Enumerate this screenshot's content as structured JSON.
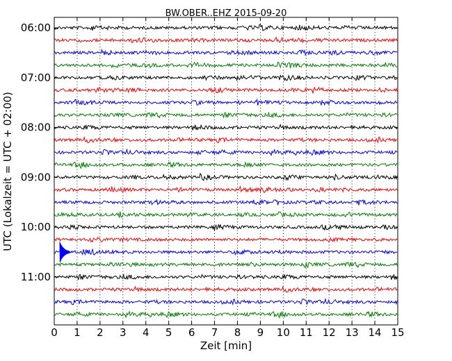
{
  "chart_data": {
    "type": "line",
    "title": "BW.OBER..EHZ 2015-09-20",
    "xlabel": "Zeit  [min]",
    "ylabel": "UTC (Lokalzeit = UTC + 02:00)",
    "xlim": [
      0,
      15
    ],
    "x_ticks": [
      "0",
      "1",
      "2",
      "3",
      "4",
      "5",
      "6",
      "7",
      "8",
      "9",
      "10",
      "11",
      "12",
      "13",
      "14",
      "15"
    ],
    "y_ticks": [
      "06:00",
      "07:00",
      "08:00",
      "09:00",
      "10:00",
      "11:00"
    ],
    "grid": "vertical dotted",
    "colors": [
      "#000000",
      "#ff0000",
      "#0000ff",
      "#008000"
    ],
    "traces": [
      {
        "start": "06:00",
        "color": "#000000"
      },
      {
        "start": "06:15",
        "color": "#ff0000"
      },
      {
        "start": "06:30",
        "color": "#0000ff"
      },
      {
        "start": "06:45",
        "color": "#008000"
      },
      {
        "start": "07:00",
        "color": "#000000"
      },
      {
        "start": "07:15",
        "color": "#ff0000"
      },
      {
        "start": "07:30",
        "color": "#0000ff"
      },
      {
        "start": "07:45",
        "color": "#008000"
      },
      {
        "start": "08:00",
        "color": "#000000"
      },
      {
        "start": "08:15",
        "color": "#ff0000"
      },
      {
        "start": "08:30",
        "color": "#0000ff"
      },
      {
        "start": "08:45",
        "color": "#008000"
      },
      {
        "start": "09:00",
        "color": "#000000"
      },
      {
        "start": "09:15",
        "color": "#ff0000"
      },
      {
        "start": "09:30",
        "color": "#0000ff"
      },
      {
        "start": "09:45",
        "color": "#008000"
      },
      {
        "start": "10:00",
        "color": "#000000"
      },
      {
        "start": "10:15",
        "color": "#ff0000"
      },
      {
        "start": "10:30",
        "color": "#0000ff"
      },
      {
        "start": "10:45",
        "color": "#008000"
      },
      {
        "start": "11:00",
        "color": "#000000"
      },
      {
        "start": "11:15",
        "color": "#ff0000"
      },
      {
        "start": "11:30",
        "color": "#0000ff"
      },
      {
        "start": "11:45",
        "color": "#008000"
      }
    ]
  }
}
